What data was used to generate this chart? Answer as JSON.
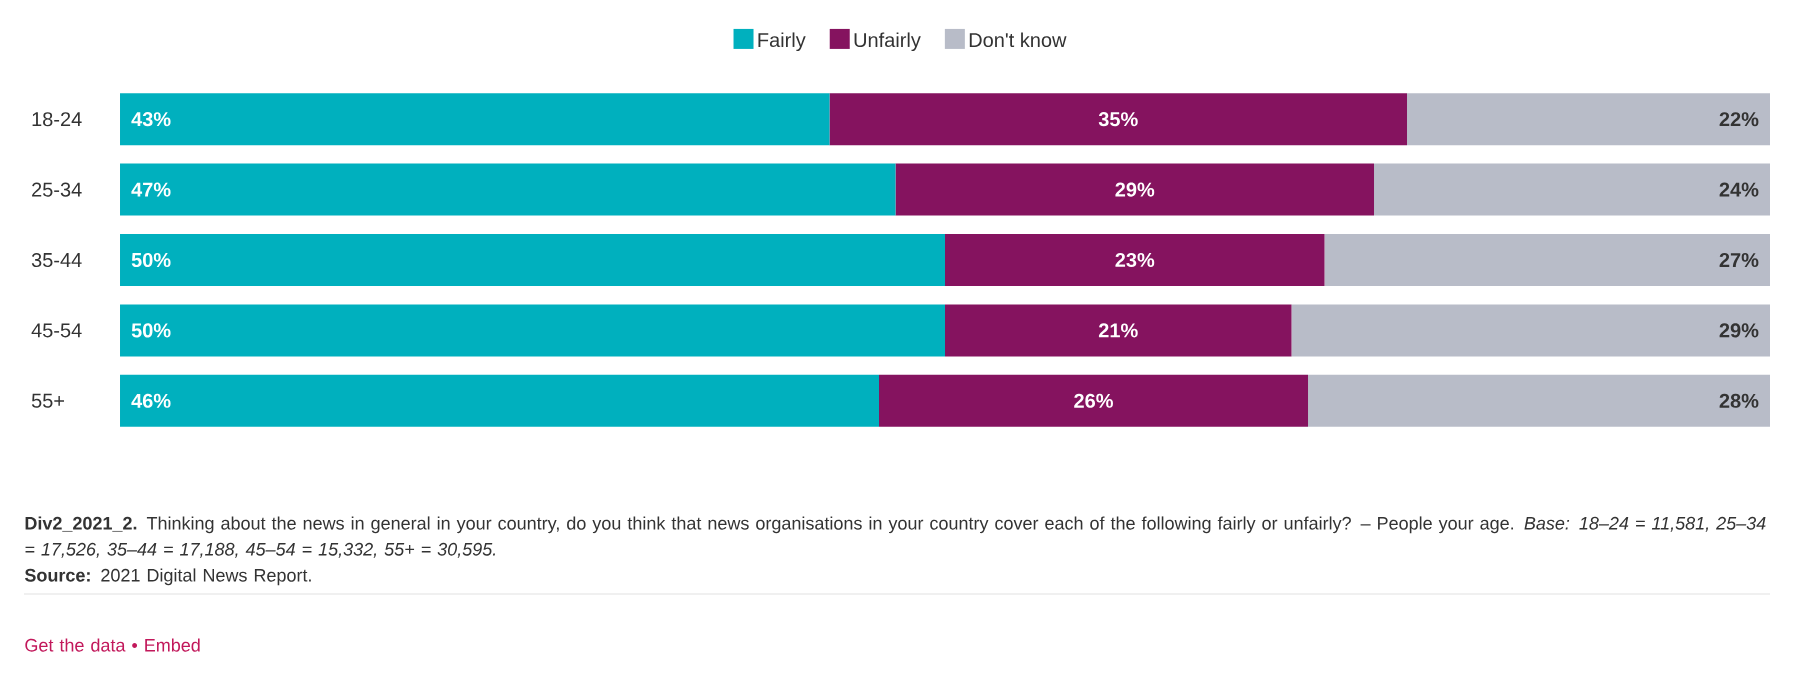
{
  "chart_data": {
    "type": "bar",
    "orientation": "horizontal",
    "stacked": true,
    "legend": "top",
    "tick_labels": "y",
    "categories": [
      "18-24",
      "25-34",
      "35-44",
      "45-54",
      "55+"
    ],
    "series": [
      {
        "name": "Fairly",
        "color": "#00b0be",
        "values": [
          43,
          47,
          50,
          50,
          46
        ],
        "value_labels": [
          "43%",
          "47%",
          "50%",
          "50%",
          "46%"
        ]
      },
      {
        "name": "Unfairly",
        "color": "#85135f",
        "values": [
          35,
          29,
          23,
          21,
          26
        ],
        "value_labels": [
          "35%",
          "29%",
          "23%",
          "21%",
          "26%"
        ]
      },
      {
        "name": "Don't know",
        "color": "#b8bcc8",
        "values": [
          22,
          24,
          27,
          29,
          28
        ],
        "value_labels": [
          "22%",
          "24%",
          "27%",
          "29%",
          "28%"
        ]
      }
    ],
    "annotations": [
      "**Div2_2021_2.** Thinking about the news in general in your country, do you think that news organisations in your country cover each of the following fairly or unfairly? – People your age. *Base: 18–24 = 11,581, 25–34 = 17,526, 35–44 = 17,188, 45–54 = 15,332, 55+ = 30,595.*",
      "**Source:** 2021 Digital News Report.",
      "Get the data • Embed"
    ]
  }
}
